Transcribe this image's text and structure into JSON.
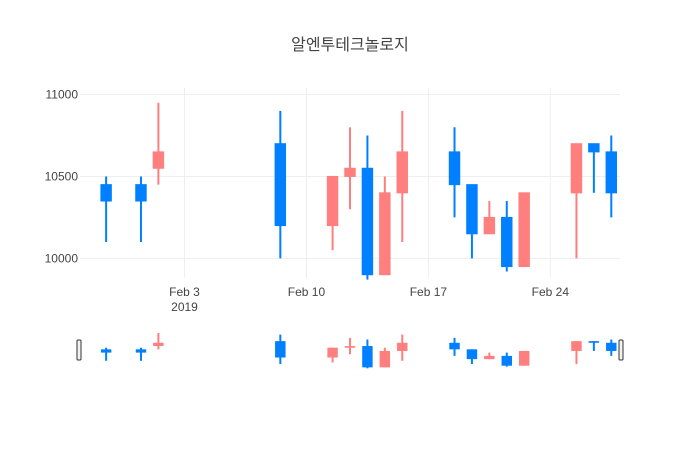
{
  "chart_data": {
    "type": "candlestick",
    "title": "알엔투테크놀로지",
    "xlabel": "",
    "ylabel": "",
    "x_range": [
      "2019-01-28",
      "2019-02-27"
    ],
    "ylim": [
      9880,
      11040
    ],
    "y_ticks": [
      10000,
      10500,
      11000
    ],
    "x_ticks": [
      {
        "date": "2019-02-03",
        "label": "Feb 3",
        "sublabel": "2019"
      },
      {
        "date": "2019-02-10",
        "label": "Feb 10",
        "sublabel": ""
      },
      {
        "date": "2019-02-17",
        "label": "Feb 17",
        "sublabel": ""
      },
      {
        "date": "2019-02-24",
        "label": "Feb 24",
        "sublabel": ""
      }
    ],
    "grid": true,
    "range_slider": true,
    "increasing_color": "#ff7f7f",
    "decreasing_color": "#0080ff",
    "candles": [
      {
        "date": "2019-01-29",
        "open": 10450,
        "high": 10500,
        "low": 10100,
        "close": 10350
      },
      {
        "date": "2019-01-31",
        "open": 10450,
        "high": 10500,
        "low": 10100,
        "close": 10350
      },
      {
        "date": "2019-02-01",
        "open": 10550,
        "high": 10950,
        "low": 10450,
        "close": 10650
      },
      {
        "date": "2019-02-08",
        "open": 10700,
        "high": 10900,
        "low": 10000,
        "close": 10200
      },
      {
        "date": "2019-02-11",
        "open": 10200,
        "high": 10500,
        "low": 10050,
        "close": 10500
      },
      {
        "date": "2019-02-12",
        "open": 10500,
        "high": 10800,
        "low": 10300,
        "close": 10550
      },
      {
        "date": "2019-02-13",
        "open": 10550,
        "high": 10750,
        "low": 9870,
        "close": 9900
      },
      {
        "date": "2019-02-14",
        "open": 9900,
        "high": 10500,
        "low": 9900,
        "close": 10400
      },
      {
        "date": "2019-02-15",
        "open": 10400,
        "high": 10900,
        "low": 10100,
        "close": 10650
      },
      {
        "date": "2019-02-18",
        "open": 10650,
        "high": 10800,
        "low": 10250,
        "close": 10450
      },
      {
        "date": "2019-02-19",
        "open": 10450,
        "high": 10450,
        "low": 10000,
        "close": 10150
      },
      {
        "date": "2019-02-20",
        "open": 10150,
        "high": 10350,
        "low": 10150,
        "close": 10250
      },
      {
        "date": "2019-02-21",
        "open": 10250,
        "high": 10350,
        "low": 9920,
        "close": 9950
      },
      {
        "date": "2019-02-22",
        "open": 9950,
        "high": 10400,
        "low": 9950,
        "close": 10400
      },
      {
        "date": "2019-02-25",
        "open": 10400,
        "high": 10700,
        "low": 10000,
        "close": 10700
      },
      {
        "date": "2019-02-26",
        "open": 10700,
        "high": 10700,
        "low": 10400,
        "close": 10650
      },
      {
        "date": "2019-02-27",
        "open": 10650,
        "high": 10750,
        "low": 10250,
        "close": 10400
      }
    ]
  }
}
